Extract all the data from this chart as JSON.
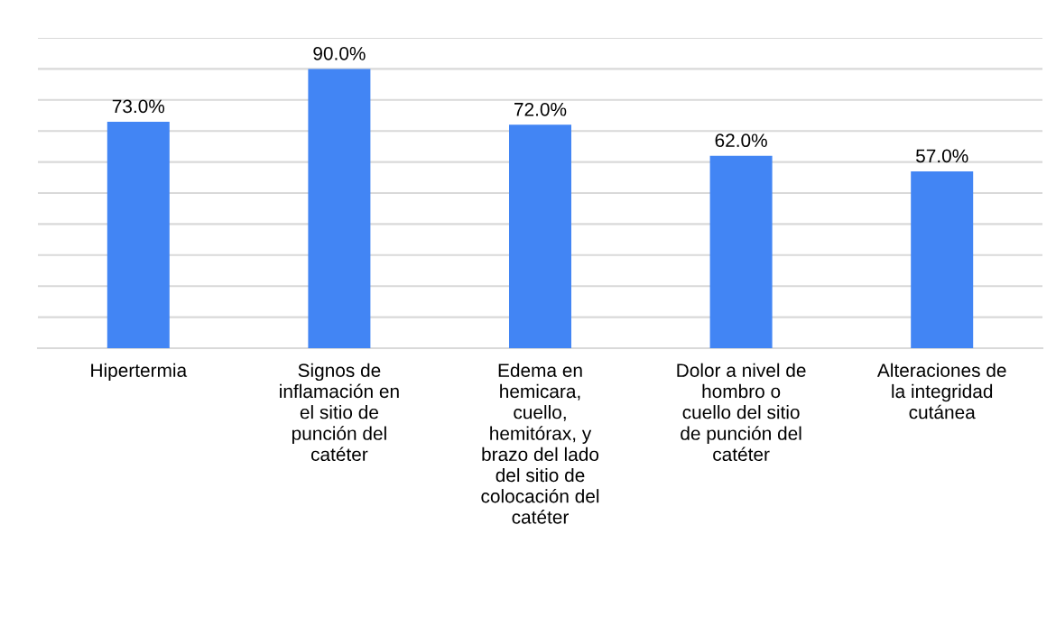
{
  "chart_data": {
    "type": "bar",
    "categories": [
      "Hipertermia",
      "Signos de\ninflamación en\nel sitio de\npunción del\ncatéter",
      "Edema en\nhemicara,\ncuello,\nhemitórax, y\nbrazo del lado\ndel sitio de\ncolocación del\ncatéter",
      "Dolor a nivel de\nhombro o\ncuello del sitio\nde punción del\ncatéter",
      "Alteraciones de\nla integridad\ncutánea"
    ],
    "values": [
      73.0,
      90.0,
      72.0,
      62.0,
      57.0
    ],
    "value_labels": [
      "73.0%",
      "90.0%",
      "72.0%",
      "62.0%",
      "57.0%"
    ],
    "color": "#4285f4",
    "ylim": [
      0,
      100
    ],
    "yticks": [
      {
        "value": 0,
        "label": null
      },
      {
        "value": 10,
        "label": null
      },
      {
        "value": 20,
        "label": null
      },
      {
        "value": 30,
        "label": null
      },
      {
        "value": 40,
        "label": null
      },
      {
        "value": 50,
        "label": null
      },
      {
        "value": 60,
        "label": null
      },
      {
        "value": 70,
        "label": null
      },
      {
        "value": 80,
        "label": null
      },
      {
        "value": 90,
        "label": null
      },
      {
        "value": 100,
        "label": null
      }
    ],
    "tick_labels": "x",
    "grid": "y",
    "legend": false
  }
}
